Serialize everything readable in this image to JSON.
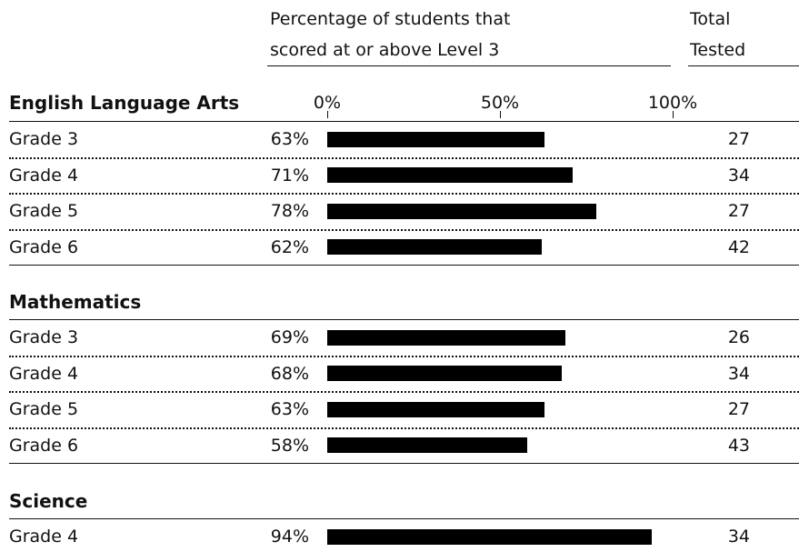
{
  "header": {
    "percent_line1": "Percentage of students that",
    "percent_line2": "scored at or above Level 3",
    "total_line1": "Total",
    "total_line2": "Tested"
  },
  "axis_ticks": [
    "0%",
    "50%",
    "100%"
  ],
  "chart_data": {
    "type": "bar",
    "orientation": "horizontal",
    "xlim": [
      0,
      100
    ],
    "x_unit": "%",
    "sections": [
      {
        "title": "English Language Arts",
        "rows": [
          {
            "label": "Grade 3",
            "percent": 63,
            "percent_label": "63%",
            "total": "27"
          },
          {
            "label": "Grade 4",
            "percent": 71,
            "percent_label": "71%",
            "total": "34"
          },
          {
            "label": "Grade 5",
            "percent": 78,
            "percent_label": "78%",
            "total": "27"
          },
          {
            "label": "Grade 6",
            "percent": 62,
            "percent_label": "62%",
            "total": "42"
          }
        ]
      },
      {
        "title": "Mathematics",
        "rows": [
          {
            "label": "Grade 3",
            "percent": 69,
            "percent_label": "69%",
            "total": "26"
          },
          {
            "label": "Grade 4",
            "percent": 68,
            "percent_label": "68%",
            "total": "34"
          },
          {
            "label": "Grade 5",
            "percent": 63,
            "percent_label": "63%",
            "total": "27"
          },
          {
            "label": "Grade 6",
            "percent": 58,
            "percent_label": "58%",
            "total": "43"
          }
        ]
      },
      {
        "title": "Science",
        "rows": [
          {
            "label": "Grade 4",
            "percent": 94,
            "percent_label": "94%",
            "total": "34"
          }
        ]
      }
    ]
  }
}
